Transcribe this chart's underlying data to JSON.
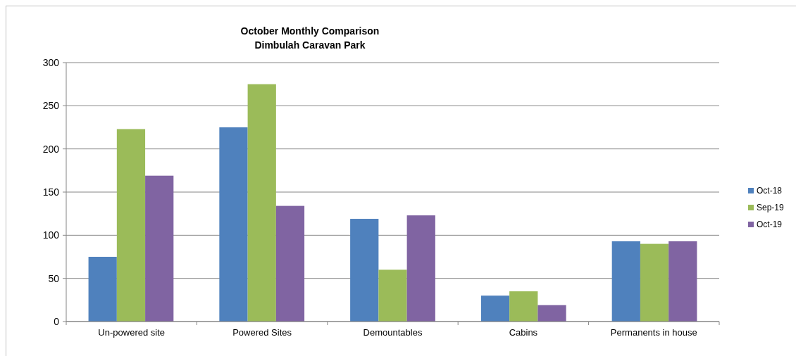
{
  "chart_data": {
    "type": "bar",
    "title": "October  Monthly Comparison\nDimbulah Caravan Park",
    "categories": [
      "Un-powered site",
      "Powered Sites",
      "Demountables",
      "Cabins",
      "Permanents in house"
    ],
    "series": [
      {
        "name": "Oct-18",
        "color": "#4f81bd",
        "values": [
          75,
          225,
          119,
          30,
          93
        ]
      },
      {
        "name": "Sep-19",
        "color": "#9bbb59",
        "values": [
          223,
          275,
          60,
          35,
          90
        ]
      },
      {
        "name": "Oct-19",
        "color": "#8064a2",
        "values": [
          169,
          134,
          123,
          19,
          93
        ]
      }
    ],
    "ylim": [
      0,
      300
    ],
    "yticks": [
      0,
      50,
      100,
      150,
      200,
      250,
      300
    ],
    "grid": "y",
    "legend": "right"
  }
}
